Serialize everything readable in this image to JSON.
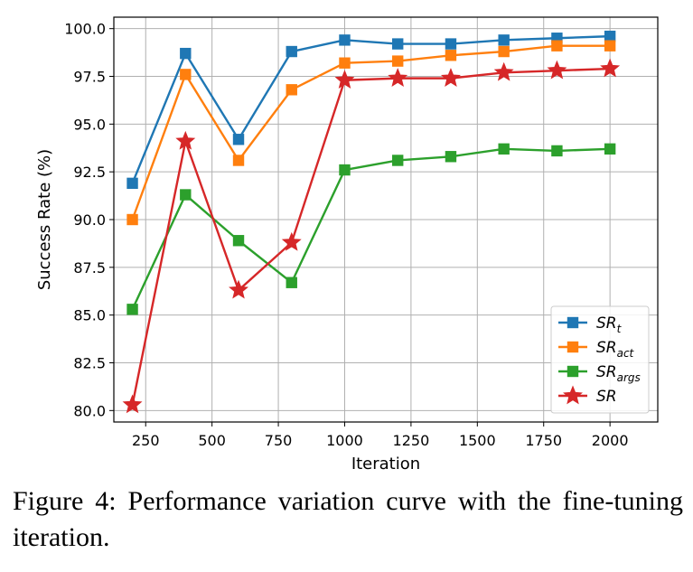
{
  "chart_data": {
    "type": "line",
    "xlabel": "Iteration",
    "ylabel": "Success Rate (%)",
    "xlim": [
      130,
      2180
    ],
    "ylim": [
      79.4,
      100.6
    ],
    "xticks": [
      250,
      500,
      750,
      1000,
      1250,
      1500,
      1750,
      2000
    ],
    "xtick_labels": [
      "250",
      "500",
      "750",
      "1000",
      "1250",
      "1500",
      "1750",
      "2000"
    ],
    "yticks": [
      80.0,
      82.5,
      85.0,
      87.5,
      90.0,
      92.5,
      95.0,
      97.5,
      100.0
    ],
    "ytick_labels": [
      "80.0",
      "82.5",
      "85.0",
      "87.5",
      "90.0",
      "92.5",
      "95.0",
      "97.5",
      "100.0"
    ],
    "grid": true,
    "legend_position": "lower-right",
    "x": [
      200,
      400,
      600,
      800,
      1000,
      1200,
      1400,
      1600,
      1800,
      2000
    ],
    "series": [
      {
        "name": "SR_t",
        "label_main": "SR",
        "label_sub": "t",
        "color": "#1f77b4",
        "marker": "square",
        "values": [
          91.9,
          98.7,
          94.2,
          98.8,
          99.4,
          99.2,
          99.2,
          99.4,
          99.5,
          99.6
        ]
      },
      {
        "name": "SR_act",
        "label_main": "SR",
        "label_sub": "act",
        "color": "#ff7f0e",
        "marker": "square",
        "values": [
          90.0,
          97.6,
          93.1,
          96.8,
          98.2,
          98.3,
          98.6,
          98.8,
          99.1,
          99.1
        ]
      },
      {
        "name": "SR_args",
        "label_main": "SR",
        "label_sub": "args",
        "color": "#2ca02c",
        "marker": "square",
        "values": [
          85.3,
          91.3,
          88.9,
          86.7,
          92.6,
          93.1,
          93.3,
          93.7,
          93.6,
          93.7
        ]
      },
      {
        "name": "SR",
        "label_main": "SR",
        "label_sub": "",
        "color": "#d62728",
        "marker": "star",
        "values": [
          80.3,
          94.1,
          86.3,
          88.8,
          97.3,
          97.4,
          97.4,
          97.7,
          97.8,
          97.9
        ]
      }
    ]
  },
  "caption": "Figure 4: Performance variation curve with the fine-tuning iteration."
}
